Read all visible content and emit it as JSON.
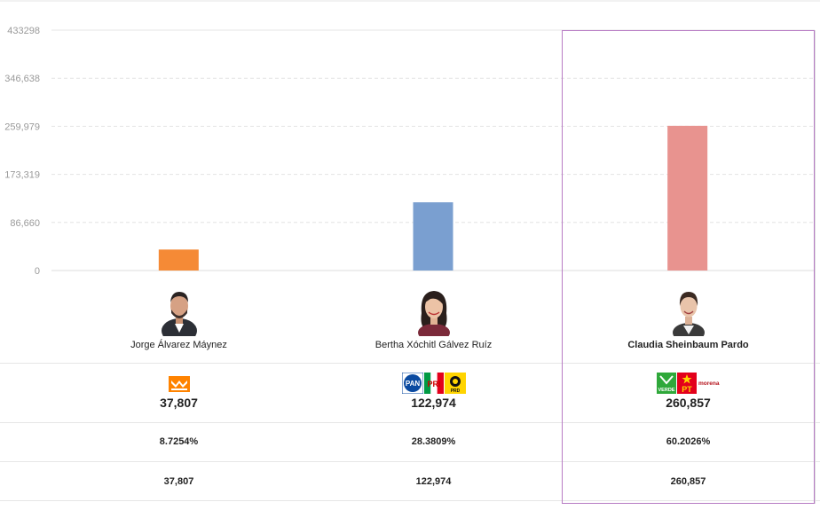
{
  "chart_data": {
    "type": "bar",
    "ylim": [
      0,
      433298
    ],
    "ytick_labels": [
      "433298",
      "346,638",
      "259,979",
      "173,319",
      "86,660",
      "0"
    ],
    "ytick_values": [
      433298,
      346638,
      259979,
      173319,
      86660,
      0
    ],
    "categories": [
      "Jorge Álvarez Máynez",
      "Bertha Xóchitl Gálvez Ruíz",
      "Claudia Sheinbaum Pardo"
    ],
    "values": [
      37807,
      122974,
      260857
    ],
    "colors": [
      "#f58a36",
      "#7a9fd0",
      "#e8938f"
    ],
    "grid": true
  },
  "candidates": [
    {
      "name": "Jorge Álvarez Máynez",
      "votes_big": "37,807",
      "percent": "8.7254%",
      "votes_small": "37,807",
      "parties": [
        "MC"
      ]
    },
    {
      "name": "Bertha Xóchitl Gálvez Ruíz",
      "votes_big": "122,974",
      "percent": "28.3809%",
      "votes_small": "122,974",
      "parties": [
        "PAN",
        "PRI",
        "PRD"
      ]
    },
    {
      "name": "Claudia Sheinbaum Pardo",
      "votes_big": "260,857",
      "percent": "60.2026%",
      "votes_small": "260,857",
      "parties": [
        "VERDE",
        "PT",
        "morena"
      ]
    }
  ],
  "party_labels": {
    "pan": "PAN",
    "pri": "PRI",
    "prd": "PRD",
    "verde": "VERDE",
    "pt": "PT",
    "morena": "morena"
  },
  "icons": {
    "mc_logo": "movimiento-ciudadano-logo",
    "avatar": "candidate-photo"
  }
}
